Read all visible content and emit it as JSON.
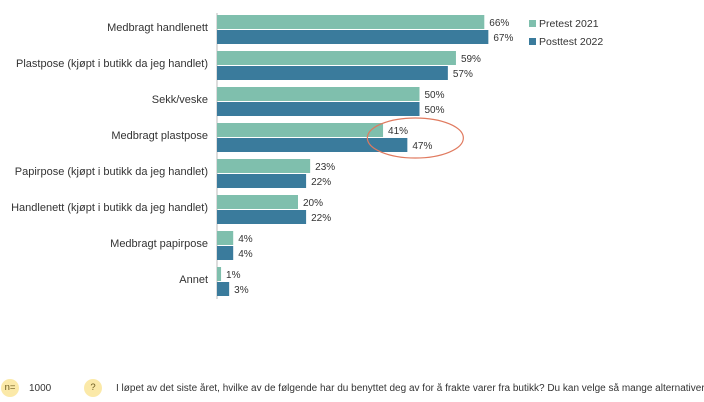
{
  "chart_data": {
    "type": "bar",
    "orientation": "horizontal",
    "categories": [
      "Medbragt handlenett",
      "Plastpose (kjøpt i butikk da jeg handlet)",
      "Sekk/veske",
      "Medbragt plastpose",
      "Papirpose (kjøpt i butikk da jeg handlet)",
      "Handlenett (kjøpt i butikk da jeg handlet)",
      "Medbragt papirpose",
      "Annet"
    ],
    "series": [
      {
        "name": "Pretest 2021",
        "color": "#7fbfad",
        "values": [
          66,
          59,
          50,
          41,
          23,
          20,
          4,
          1
        ]
      },
      {
        "name": "Posttest 2022",
        "color": "#3a7b9c",
        "values": [
          67,
          57,
          50,
          47,
          22,
          22,
          4,
          3
        ]
      }
    ],
    "value_suffix": "%",
    "xlim": [
      0,
      100
    ],
    "grid": false,
    "legend_position": "right",
    "highlight": {
      "category": "Medbragt plastpose",
      "color": "#e07a5f"
    }
  },
  "footer": {
    "n_badge": "n=",
    "n_value": "1000",
    "question_badge": "?",
    "question": "I løpet av det siste året, hvilke av de følgende har du benyttet deg av for å frakte varer fra butikk? Du kan velge så mange alternativer"
  }
}
